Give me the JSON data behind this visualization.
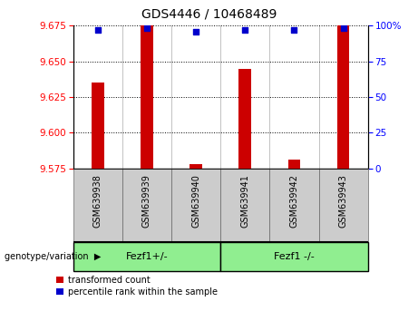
{
  "title": "GDS4446 / 10468489",
  "samples": [
    "GSM639938",
    "GSM639939",
    "GSM639940",
    "GSM639941",
    "GSM639942",
    "GSM639943"
  ],
  "red_values": [
    9.635,
    9.675,
    9.578,
    9.645,
    9.581,
    9.675
  ],
  "blue_values": [
    97,
    98,
    96,
    97,
    97,
    98
  ],
  "ylim_left": [
    9.575,
    9.675
  ],
  "ylim_right": [
    0,
    100
  ],
  "yticks_left": [
    9.575,
    9.6,
    9.625,
    9.65,
    9.675
  ],
  "yticks_right": [
    0,
    25,
    50,
    75,
    100
  ],
  "ytick_labels_right": [
    "0",
    "25",
    "50",
    "75",
    "100%"
  ],
  "bar_color": "#cc0000",
  "dot_color": "#0000cc",
  "group1_label": "Fezf1+/-",
  "group2_label": "Fezf1 -/-",
  "group1_indices": [
    0,
    1,
    2
  ],
  "group2_indices": [
    3,
    4,
    5
  ],
  "legend_red": "transformed count",
  "legend_blue": "percentile rank within the sample",
  "genotype_label": "genotype/variation",
  "group_bg_color": "#90ee90",
  "xtick_bg_color": "#cccccc",
  "bar_width": 0.25,
  "dot_size": 25,
  "title_fontsize": 10,
  "label_fontsize": 7,
  "group_fontsize": 8
}
